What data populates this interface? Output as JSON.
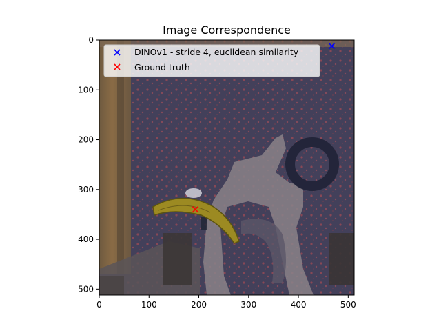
{
  "chart_data": {
    "type": "scatter",
    "title": "Image Correspondence",
    "xlabel": "",
    "ylabel": "",
    "xlim": [
      0,
      512
    ],
    "ylim": [
      512,
      0
    ],
    "x_ticks": [
      0,
      100,
      200,
      300,
      400,
      500
    ],
    "y_ticks": [
      0,
      100,
      200,
      300,
      400,
      500
    ],
    "grid": false,
    "legend_position": "upper-left",
    "background": "photo of a scene: wooden door frame on the left, patterned fabric wall, grey toy car shape, dark ring, a banana in the lower-middle, dark blocks at the bottom",
    "series": [
      {
        "name": "DINOv1 - stride 4, euclidean similarity",
        "marker": "x",
        "color": "#0000ff",
        "points": [
          {
            "x": 467,
            "y": 12
          }
        ]
      },
      {
        "name": "Ground truth",
        "marker": "x",
        "color": "#ff0000",
        "points": [
          {
            "x": 193,
            "y": 340
          }
        ]
      }
    ]
  }
}
